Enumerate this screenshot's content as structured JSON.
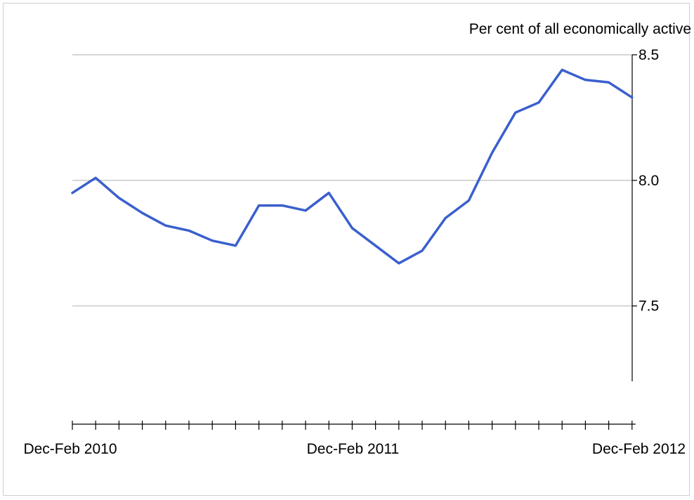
{
  "chart_data": {
    "type": "line",
    "ylabel": "Per cent of all economically active",
    "ylim": [
      7.2,
      8.5
    ],
    "yticks": [
      8.5,
      8.0,
      7.5
    ],
    "ytick_labels": [
      "8.5",
      "8.0",
      "7.5"
    ],
    "x_labels": [
      "Dec-Feb 2010",
      "Dec-Feb 2011",
      "Dec-Feb 2012"
    ],
    "x_label_index": [
      0,
      12,
      24
    ],
    "grid": true,
    "line_color": "#3a5fcd",
    "series": [
      {
        "values": [
          7.95,
          8.01,
          7.93,
          7.87,
          7.82,
          7.8,
          7.76,
          7.74,
          7.9,
          7.9,
          7.88,
          7.95,
          7.81,
          7.74,
          7.67,
          7.72,
          7.85,
          7.92,
          8.11,
          8.27,
          8.31,
          8.44,
          8.4,
          8.39,
          8.33
        ]
      }
    ]
  }
}
